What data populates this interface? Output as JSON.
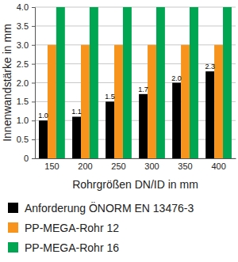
{
  "chart_data": {
    "type": "bar",
    "y_label": "Innenwandstärke in mm",
    "x_label": "Rohrgrößen DN/ID in mm",
    "categories": [
      "150",
      "200",
      "250",
      "300",
      "350",
      "400"
    ],
    "series": [
      {
        "name": "Anforderung ÖNORM EN 13476-3",
        "color": "#000000",
        "values": [
          1.0,
          1.1,
          1.5,
          1.7,
          2.0,
          2.3
        ],
        "value_labels": [
          "1.0",
          "1.1",
          "1.5",
          "1.7",
          "2.0",
          "2.3"
        ],
        "data_labels": true
      },
      {
        "name": "PP-MEGA-Rohr 12",
        "color": "#f7941d",
        "values": [
          3.0,
          3.0,
          3.0,
          3.0,
          3.0,
          3.0
        ]
      },
      {
        "name": "PP-MEGA-Rohr 16",
        "color": "#00a651",
        "values": [
          4.0,
          4.0,
          4.0,
          4.0,
          4.0,
          4.0
        ]
      }
    ],
    "ylim": [
      0,
      4
    ],
    "yticks": [
      0,
      0.5,
      {
        "value": 1,
        "label": "1.0"
      },
      1.5,
      {
        "value": 2,
        "label": "2.0"
      },
      2.5,
      {
        "value": 3,
        "label": "3.0"
      },
      3.5,
      {
        "value": 4,
        "label": "4.0"
      }
    ],
    "grid": true,
    "legend": "bottom"
  }
}
